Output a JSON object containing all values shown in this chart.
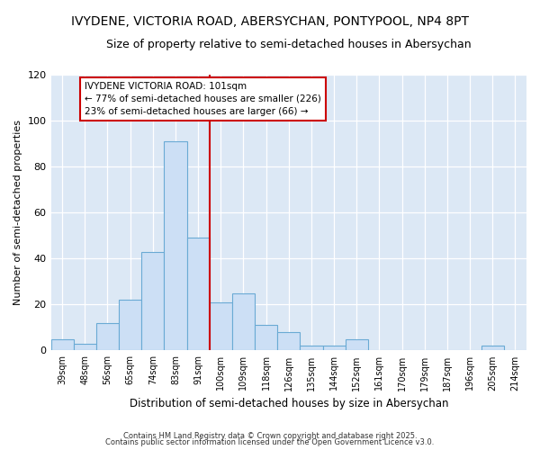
{
  "title_line1": "IVYDENE, VICTORIA ROAD, ABERSYCHAN, PONTYPOOL, NP4 8PT",
  "title_line2": "Size of property relative to semi-detached houses in Abersychan",
  "xlabel": "Distribution of semi-detached houses by size in Abersychan",
  "ylabel": "Number of semi-detached properties",
  "categories": [
    "39sqm",
    "48sqm",
    "56sqm",
    "65sqm",
    "74sqm",
    "83sqm",
    "91sqm",
    "100sqm",
    "109sqm",
    "118sqm",
    "126sqm",
    "135sqm",
    "144sqm",
    "152sqm",
    "161sqm",
    "170sqm",
    "179sqm",
    "187sqm",
    "196sqm",
    "205sqm",
    "214sqm"
  ],
  "values": [
    5,
    3,
    12,
    22,
    43,
    91,
    49,
    21,
    25,
    11,
    8,
    2,
    2,
    5,
    0,
    0,
    0,
    0,
    0,
    2,
    0
  ],
  "bar_color": "#ccdff5",
  "bar_edge_color": "#6aaad4",
  "marker_line_color": "#cc0000",
  "pct_smaller": 77,
  "pct_larger": 23,
  "count_smaller": 226,
  "count_larger": 66,
  "annotation_box_color": "#ffffff",
  "annotation_box_edge": "#cc0000",
  "ylim": [
    0,
    120
  ],
  "yticks": [
    0,
    20,
    40,
    60,
    80,
    100,
    120
  ],
  "bg_color": "#dce8f5",
  "fig_bg_color": "#ffffff",
  "footer_line1": "Contains HM Land Registry data © Crown copyright and database right 2025.",
  "footer_line2": "Contains public sector information licensed under the Open Government Licence v3.0."
}
